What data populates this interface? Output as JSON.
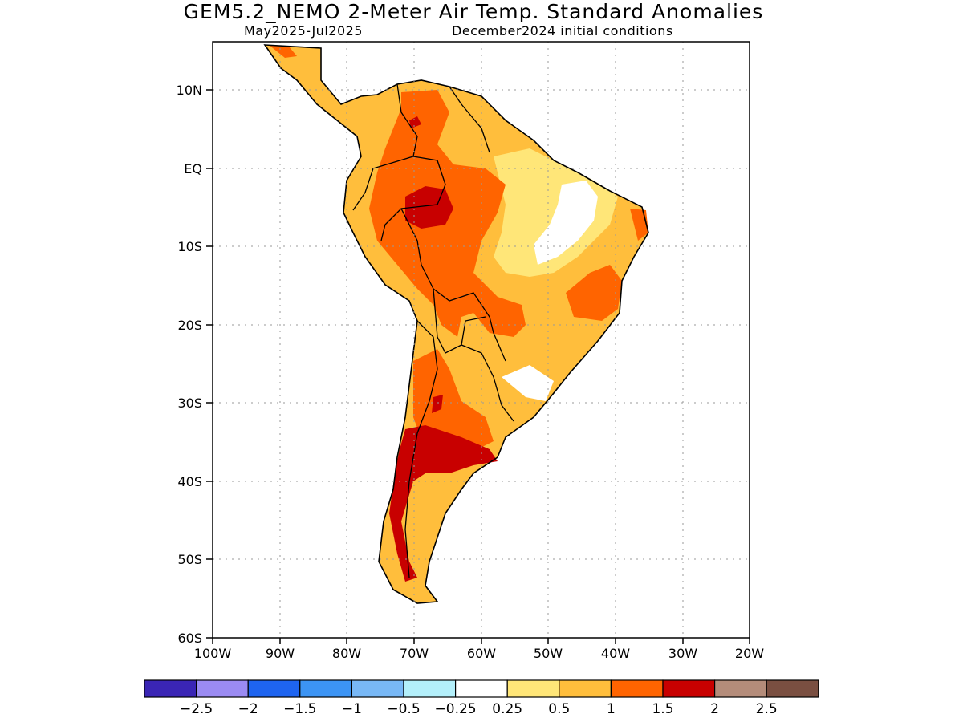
{
  "header": {
    "title": "GEM5.2_NEMO 2-Meter Air Temp. Standard Anomalies",
    "subtitle_left": "May2025-Jul2025",
    "subtitle_right": "December2024 initial conditions"
  },
  "map": {
    "region": "South America",
    "lon_range": [
      -100,
      -20
    ],
    "lat_range": [
      -60,
      16
    ],
    "lat_ticks": [
      "10N",
      "EQ",
      "10S",
      "20S",
      "30S",
      "40S",
      "50S",
      "60S"
    ],
    "lon_ticks": [
      "100W",
      "90W",
      "80W",
      "70W",
      "60W",
      "50W",
      "40W",
      "30W",
      "20W"
    ],
    "gridlines": "dotted"
  },
  "colorbar": {
    "colors": [
      "#3a25b5",
      "#9b8bf3",
      "#1e64f0",
      "#3c94f4",
      "#78b8f6",
      "#b3effa",
      "#ffffff",
      "#ffe678",
      "#ffbe3c",
      "#ff6400",
      "#c80000",
      "#b48c7a",
      "#7a4f41"
    ],
    "labels": [
      "-2.5",
      "-2",
      "-1.5",
      "-1",
      "-0.5",
      "-0.25",
      "0.25",
      "0.5",
      "1",
      "1.5",
      "2",
      "2.5"
    ]
  }
}
